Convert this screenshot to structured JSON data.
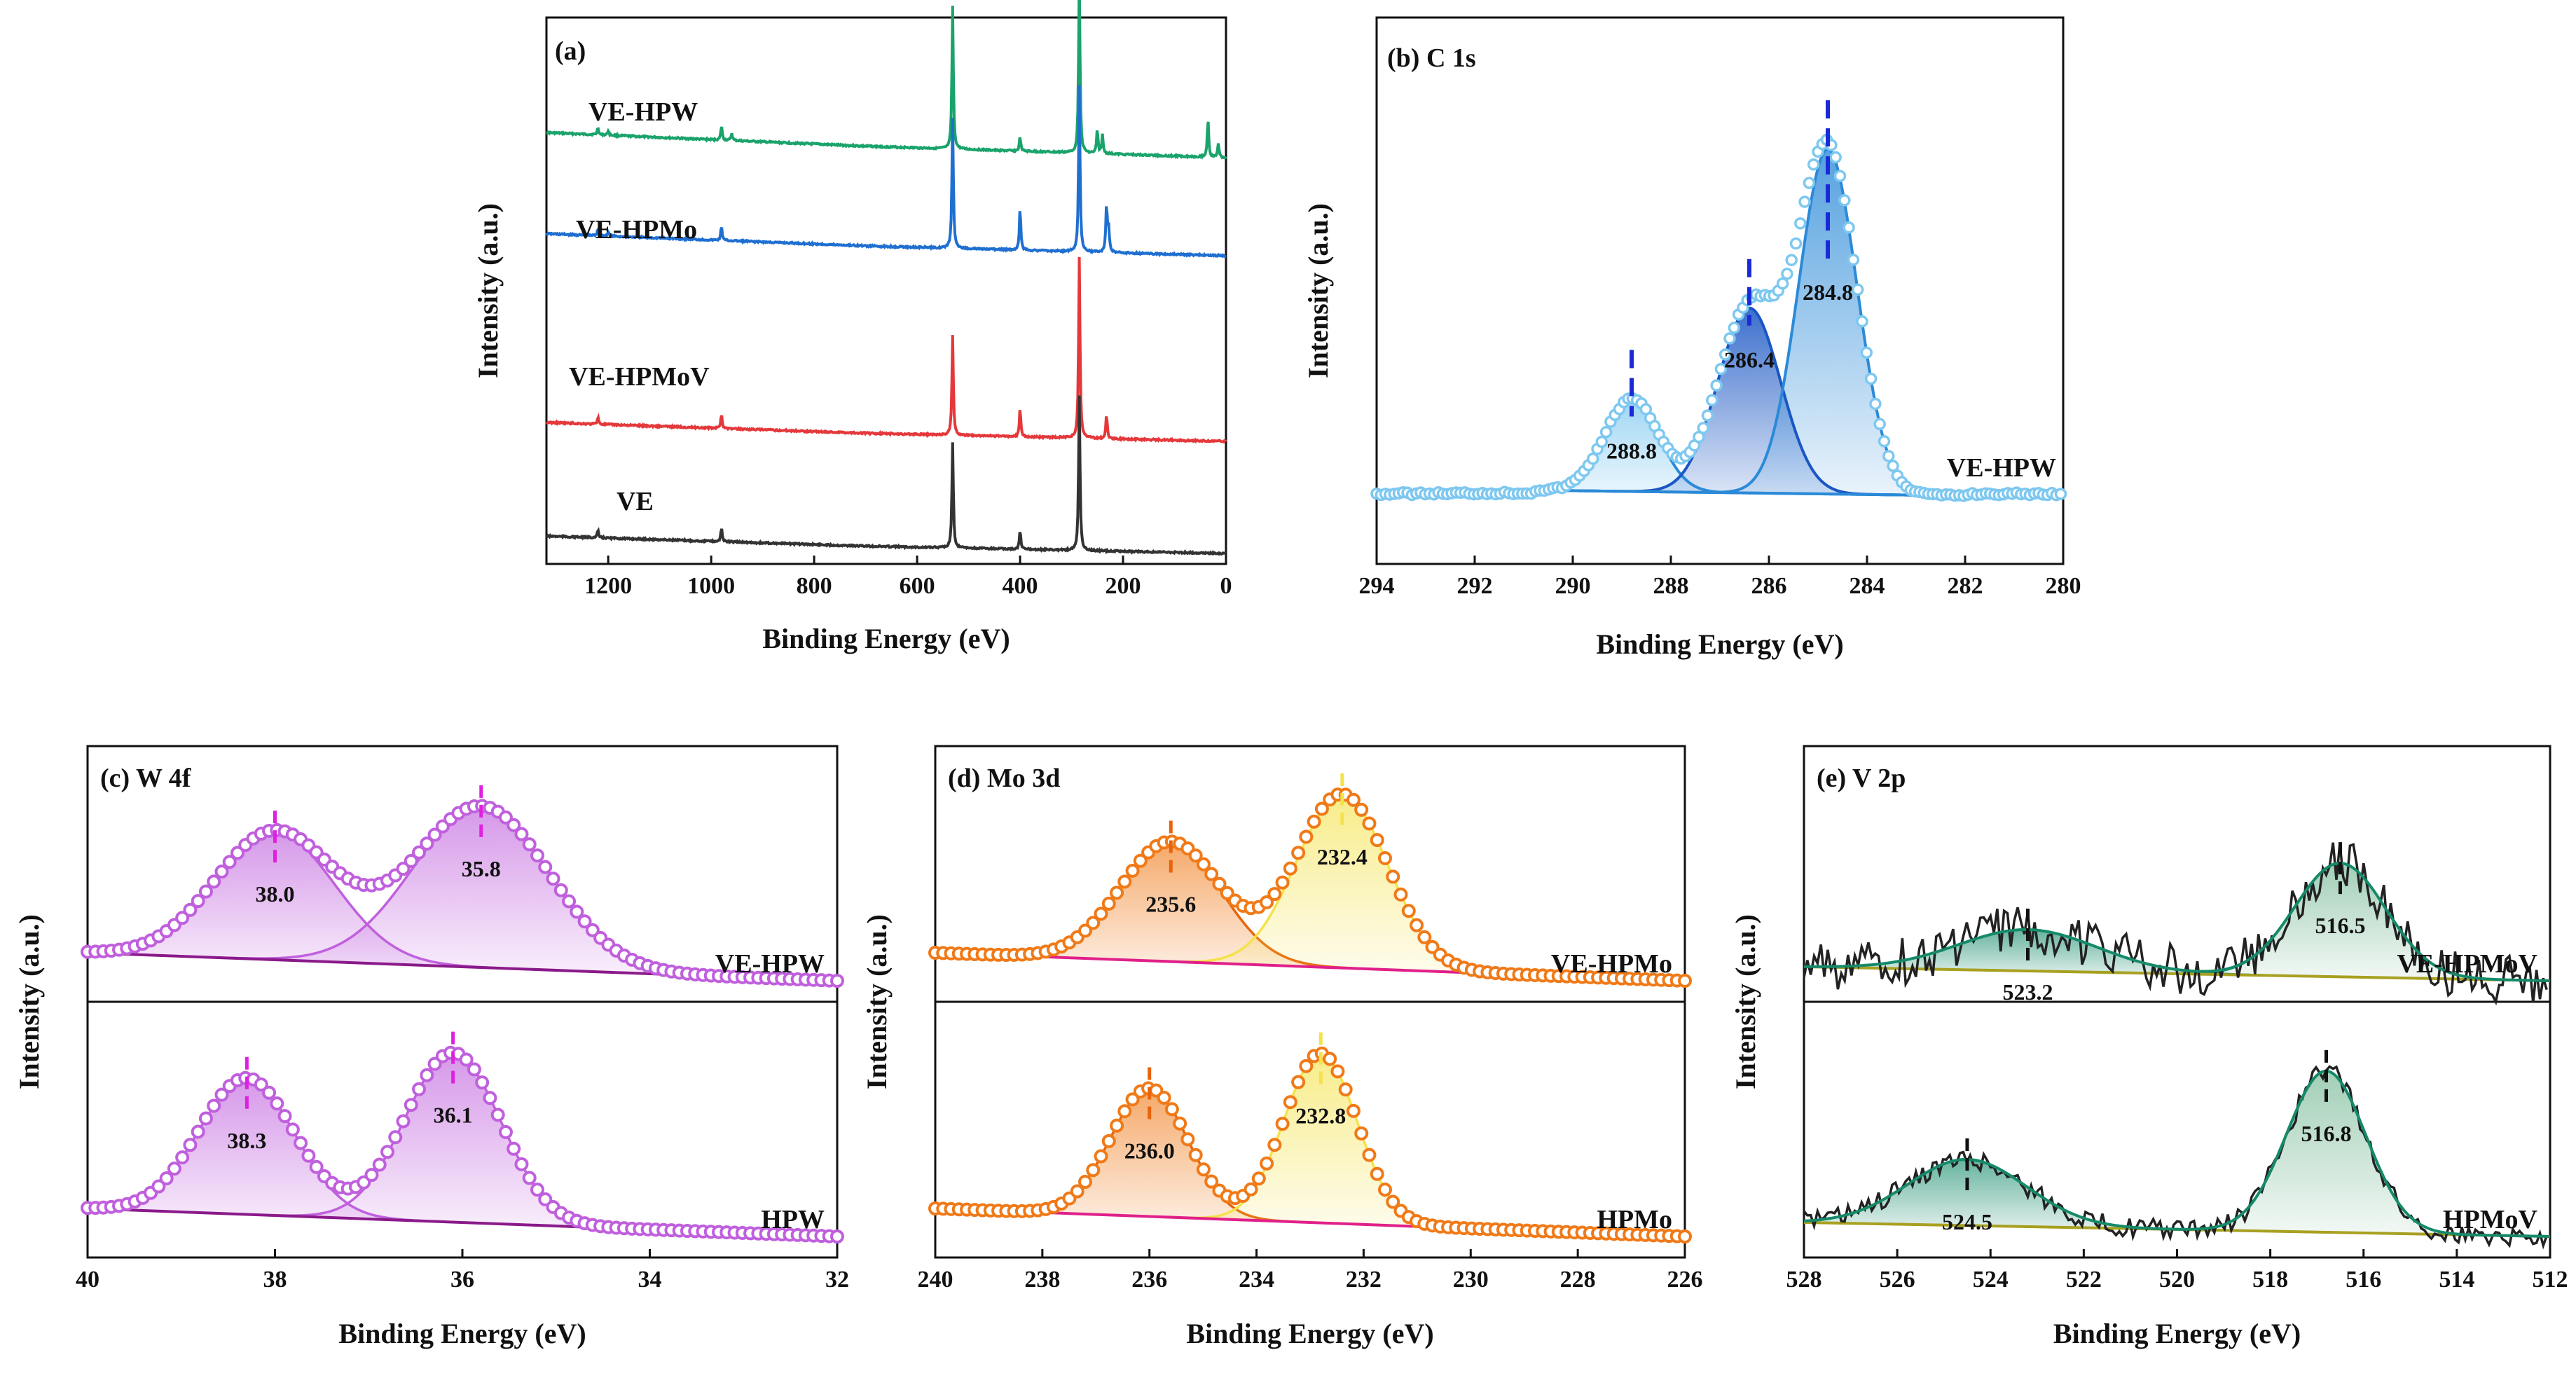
{
  "colors": {
    "green": "#1aa36b",
    "blue": "#1f6fd1",
    "red": "#e5383b",
    "black": "#333333",
    "c1s_light": "#7ec8f0",
    "c1s_dark": "#1a56c4",
    "c1s_mid": "#2b8ad8",
    "purple": "#c060dd",
    "purple_fill": "#f0c8f8",
    "magenta": "#e020e0",
    "baseline_purple": "#8a1a8a",
    "orange": "#f07a18",
    "orange_dark": "#e8640c",
    "yellow": "#f4e24a",
    "pink_base": "#e0208a",
    "v_teal": "#158a6a",
    "v_fill": "#6fb48e",
    "v_base": "#a8a020",
    "v_raw": "#222222"
  },
  "chart_data": [
    {
      "id": "a",
      "type": "line",
      "panel_label": "(a)",
      "xlabel": "Binding Energy (eV)",
      "ylabel": "Intensity (a.u.)",
      "xlim": [
        1320,
        0
      ],
      "xticks": [
        1200,
        1000,
        800,
        600,
        400,
        200,
        0
      ],
      "series": [
        {
          "name": "VE-HPW",
          "color": "green",
          "baseline": 100,
          "slope": 14,
          "peaks": [
            [
              1220,
              3
            ],
            [
              1200,
              2
            ],
            [
              980,
              6
            ],
            [
              960,
              3
            ],
            [
              531,
              60
            ],
            [
              400,
              6
            ],
            [
              285,
              76
            ],
            [
              250,
              10
            ],
            [
              240,
              8
            ],
            [
              35,
              16
            ],
            [
              15,
              6
            ]
          ]
        },
        {
          "name": "VE-HPMo",
          "color": "blue",
          "baseline": 70,
          "slope": 12,
          "peaks": [
            [
              1220,
              3
            ],
            [
              1200,
              2
            ],
            [
              980,
              6
            ],
            [
              531,
              55
            ],
            [
              400,
              18
            ],
            [
              285,
              70
            ],
            [
              232,
              20
            ],
            [
              228,
              10
            ]
          ]
        },
        {
          "name": "VE-HPMoV",
          "color": "red",
          "baseline": 40,
          "slope": 10,
          "peaks": [
            [
              1220,
              3
            ],
            [
              980,
              6
            ],
            [
              531,
              42
            ],
            [
              400,
              12
            ],
            [
              285,
              76
            ],
            [
              232,
              10
            ]
          ]
        },
        {
          "name": "VE",
          "color": "black",
          "baseline": 8,
          "slope": 9,
          "peaks": [
            [
              1220,
              3
            ],
            [
              980,
              6
            ],
            [
              531,
              44
            ],
            [
              400,
              8
            ],
            [
              285,
              65
            ]
          ]
        }
      ]
    },
    {
      "id": "b",
      "type": "line",
      "panel_label": "(b) C 1s",
      "xlabel": "Binding Energy (eV)",
      "ylabel": "Intensity (a.u.)",
      "xlim": [
        294,
        280
      ],
      "xticks": [
        294,
        292,
        290,
        288,
        286,
        284,
        282,
        280
      ],
      "sample": "VE-HPW",
      "components": [
        {
          "center": 288.8,
          "label": "288.8",
          "amp": 0.22,
          "fwhm": 1.3,
          "color": "c1s_mid"
        },
        {
          "center": 286.4,
          "label": "286.4",
          "amp": 0.44,
          "fwhm": 1.5,
          "color": "c1s_dark"
        },
        {
          "center": 284.8,
          "label": "284.8",
          "amp": 0.82,
          "fwhm": 1.4,
          "color": "c1s_mid"
        }
      ]
    },
    {
      "id": "c",
      "type": "line",
      "panel_label": "(c) W 4f",
      "xlabel": "Binding Energy (eV)",
      "ylabel": "Intensity (a.u.)",
      "xlim": [
        40,
        32
      ],
      "xticks": [
        40,
        38,
        36,
        34,
        32
      ],
      "subplots": [
        {
          "sample": "VE-HPW",
          "peaks": [
            {
              "center": 38.0,
              "label": "38.0",
              "amp": 0.62,
              "fwhm": 1.5
            },
            {
              "center": 35.8,
              "label": "35.8",
              "amp": 0.78,
              "fwhm": 1.7
            }
          ]
        },
        {
          "sample": "HPW",
          "peaks": [
            {
              "center": 38.3,
              "label": "38.3",
              "amp": 0.66,
              "fwhm": 1.2
            },
            {
              "center": 36.1,
              "label": "36.1",
              "amp": 0.82,
              "fwhm": 1.2
            }
          ]
        }
      ]
    },
    {
      "id": "d",
      "type": "line",
      "panel_label": "(d) Mo 3d",
      "xlabel": "Binding Energy (eV)",
      "ylabel": "Intensity (a.u.)",
      "xlim": [
        240,
        226
      ],
      "xticks": [
        240,
        238,
        236,
        234,
        232,
        230,
        228,
        226
      ],
      "subplots": [
        {
          "sample": "VE-HPMo",
          "peaks": [
            {
              "center": 235.6,
              "label": "235.6",
              "amp": 0.58,
              "fwhm": 2.2
            },
            {
              "center": 232.4,
              "label": "232.4",
              "amp": 0.84,
              "fwhm": 2.0
            }
          ]
        },
        {
          "sample": "HPMo",
          "peaks": [
            {
              "center": 236.0,
              "label": "236.0",
              "amp": 0.62,
              "fwhm": 1.7
            },
            {
              "center": 232.8,
              "label": "232.8",
              "amp": 0.82,
              "fwhm": 1.6
            }
          ]
        }
      ]
    },
    {
      "id": "e",
      "type": "line",
      "panel_label": "(e) V 2p",
      "xlabel": "Binding Energy (eV)",
      "ylabel": "Intensity (a.u.)",
      "xlim": [
        528,
        512
      ],
      "xticks": [
        528,
        526,
        524,
        522,
        520,
        518,
        516,
        514,
        512
      ],
      "subplots": [
        {
          "sample": "VE-HPMoV",
          "peaks": [
            {
              "center": 523.2,
              "label": "523.2",
              "amp": 0.2,
              "fwhm": 3.5
            },
            {
              "center": 516.5,
              "label": "516.5",
              "amp": 0.55,
              "fwhm": 2.3
            }
          ]
        },
        {
          "sample": "HPMoV",
          "peaks": [
            {
              "center": 524.5,
              "label": "524.5",
              "amp": 0.32,
              "fwhm": 3.0
            },
            {
              "center": 516.8,
              "label": "516.8",
              "amp": 0.78,
              "fwhm": 2.0
            }
          ]
        }
      ]
    }
  ]
}
